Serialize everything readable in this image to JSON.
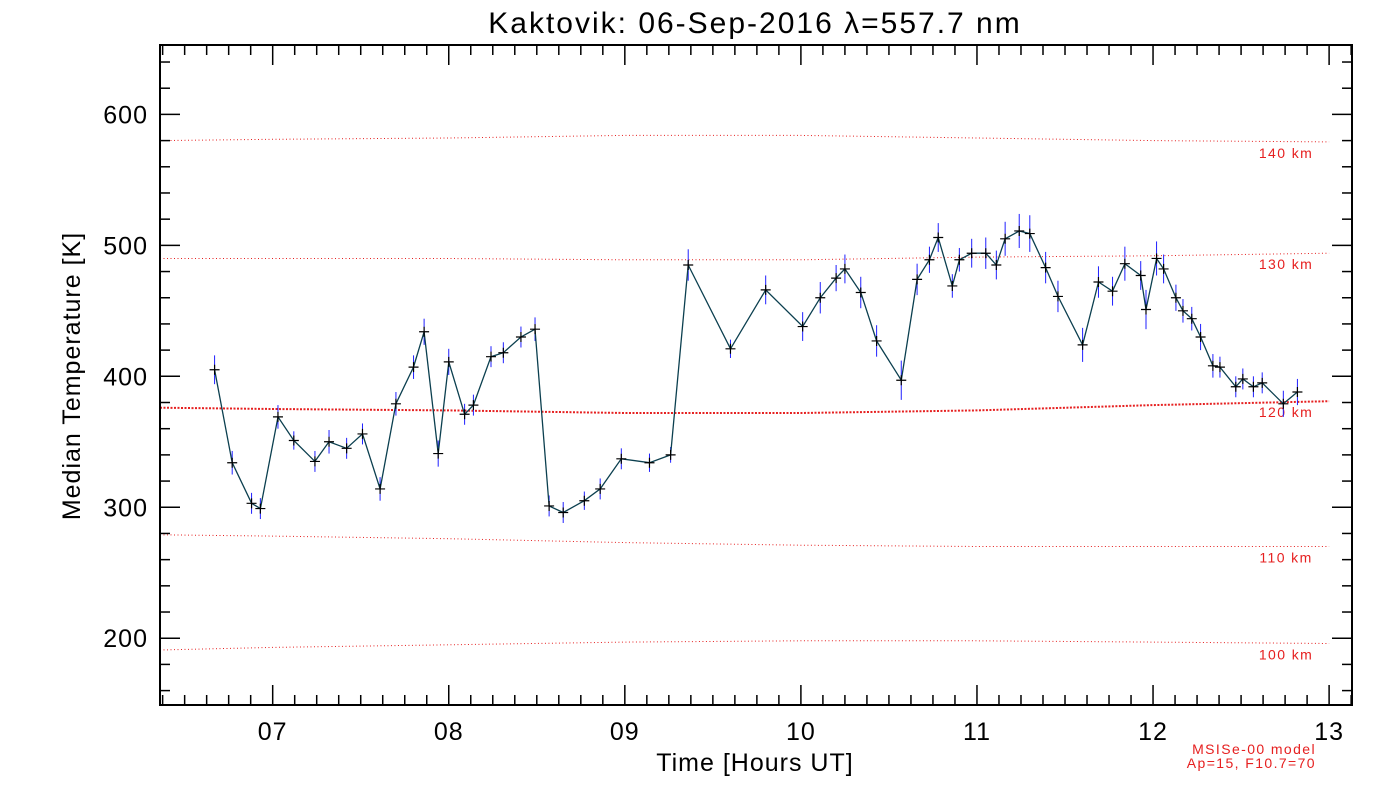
{
  "chart_data": {
    "type": "line",
    "title": "Kaktovik: 06-Sep-2016 λ=557.7 nm",
    "xlabel": "Time [Hours UT]",
    "ylabel": "Median Temperature [K]",
    "xlim": [
      6.36,
      13.13
    ],
    "ylim": [
      149,
      653
    ],
    "x_ticks": [
      7,
      8,
      9,
      10,
      11,
      12,
      13
    ],
    "x_tick_labels": [
      "07",
      "08",
      "09",
      "10",
      "11",
      "12",
      "13"
    ],
    "y_ticks": [
      200,
      300,
      400,
      500,
      600
    ],
    "y_tick_labels": [
      "200",
      "300",
      "400",
      "500",
      "600"
    ],
    "grid": false,
    "series": [
      {
        "color": "#0b3f4f",
        "marker_color": "#000000",
        "error_bar_color": "#1f1fff",
        "x": [
          6.67,
          6.77,
          6.88,
          6.93,
          7.03,
          7.12,
          7.24,
          7.32,
          7.42,
          7.51,
          7.61,
          7.7,
          7.8,
          7.86,
          7.94,
          8.0,
          8.09,
          8.14,
          8.24,
          8.31,
          8.41,
          8.49,
          8.57,
          8.65,
          8.77,
          8.86,
          8.98,
          9.14,
          9.26,
          9.36,
          9.6,
          9.8,
          10.01,
          10.11,
          10.2,
          10.25,
          10.34,
          10.43,
          10.57,
          10.66,
          10.73,
          10.78,
          10.86,
          10.9,
          10.97,
          11.05,
          11.11,
          11.16,
          11.24,
          11.3,
          11.39,
          11.46,
          11.6,
          11.69,
          11.77,
          11.84,
          11.93,
          11.96,
          12.02,
          12.06,
          12.13,
          12.17,
          12.22,
          12.27,
          12.34,
          12.38,
          12.47,
          12.51,
          12.57,
          12.62,
          12.74,
          12.82
        ],
        "y": [
          405,
          334,
          303,
          299,
          369,
          351,
          335,
          350,
          345,
          356,
          314,
          379,
          407,
          434,
          341,
          411,
          371,
          378,
          415,
          418,
          430,
          436,
          301,
          296,
          305,
          314,
          337,
          334,
          340,
          485,
          421,
          466,
          438,
          460,
          475,
          482,
          464,
          427,
          397,
          474,
          489,
          506,
          469,
          489,
          494,
          494,
          485,
          505,
          511,
          509,
          483,
          461,
          424,
          472,
          465,
          486,
          477,
          451,
          490,
          482,
          460,
          450,
          444,
          430,
          408,
          407,
          392,
          398,
          392,
          395,
          379,
          388
        ],
        "yerr": [
          11,
          9,
          8,
          8,
          9,
          7,
          8,
          9,
          8,
          8,
          9,
          9,
          9,
          10,
          10,
          10,
          8,
          8,
          8,
          8,
          8,
          9,
          8,
          8,
          7,
          8,
          8,
          7,
          6,
          12,
          7,
          11,
          11,
          12,
          10,
          11,
          12,
          12,
          15,
          12,
          10,
          11,
          9,
          9,
          11,
          12,
          11,
          13,
          13,
          14,
          12,
          12,
          13,
          12,
          11,
          13,
          11,
          15,
          13,
          11,
          10,
          9,
          9,
          10,
          9,
          8,
          8,
          8,
          8,
          8,
          10,
          10
        ]
      }
    ],
    "model": {
      "color": "#e62020",
      "note": [
        "MSISe-00 model",
        "Ap=15, F10.7=70"
      ],
      "series": [
        {
          "name": "140 km",
          "x": [
            6.36,
            7,
            8,
            9,
            10,
            11,
            12,
            13
          ],
          "y": [
            580,
            581,
            582,
            584,
            584,
            582,
            580,
            579
          ]
        },
        {
          "name": "130 km",
          "x": [
            6.36,
            7,
            8,
            9,
            10,
            11,
            12,
            13
          ],
          "y": [
            490,
            490,
            490,
            489,
            489,
            491,
            492,
            494
          ]
        },
        {
          "name": "120 km",
          "x": [
            6.36,
            7,
            8,
            9,
            10,
            11,
            12,
            13
          ],
          "y": [
            376,
            375,
            374,
            372,
            372,
            374,
            378,
            381
          ]
        },
        {
          "name": "110 km",
          "x": [
            6.36,
            7,
            8,
            9,
            10,
            11,
            12,
            13
          ],
          "y": [
            279,
            278,
            276,
            273,
            271,
            270,
            270,
            270
          ]
        },
        {
          "name": "100 km",
          "x": [
            6.36,
            7,
            8,
            9,
            10,
            11,
            12,
            13
          ],
          "y": [
            191,
            193,
            195,
            197,
            198,
            198,
            197,
            196
          ]
        }
      ]
    }
  }
}
